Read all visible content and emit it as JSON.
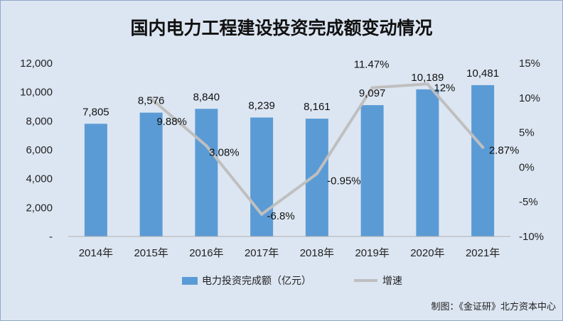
{
  "chart_data": {
    "type": "bar",
    "title": "国内电力工程建设投资完成额变动情况",
    "categories": [
      "2014年",
      "2015年",
      "2016年",
      "2017年",
      "2018年",
      "2019年",
      "2020年",
      "2021年"
    ],
    "series": [
      {
        "name": "电力投资完成额（亿元）",
        "type": "bar",
        "axis": "left",
        "color": "#5b9bd5",
        "values": [
          7805,
          8576,
          8840,
          8239,
          8161,
          9097,
          10189,
          10481
        ],
        "labels": [
          "7,805",
          "8,576",
          "8,840",
          "8,239",
          "8,161",
          "9,097",
          "10,189",
          "10,481"
        ]
      },
      {
        "name": "增速",
        "type": "line",
        "axis": "right",
        "color": "#bfbfbf",
        "values": [
          null,
          9.88,
          3.08,
          -6.8,
          -0.95,
          11.47,
          12,
          2.87
        ],
        "labels": [
          "",
          "9.88%",
          "3.08%",
          "-6.8%",
          "-0.95%",
          "11.47%",
          "12%",
          "2.87%"
        ]
      }
    ],
    "y_left": {
      "min": 0,
      "max": 12000,
      "ticks": [
        0,
        2000,
        4000,
        6000,
        8000,
        10000,
        12000
      ],
      "tick_labels": [
        "-",
        "2,000",
        "4,000",
        "6,000",
        "8,000",
        "10,000",
        "12,000"
      ]
    },
    "y_right": {
      "min": -10,
      "max": 15,
      "ticks": [
        -10,
        -5,
        0,
        5,
        10,
        15
      ],
      "tick_labels": [
        "-10%",
        "-5%",
        "0%",
        "5%",
        "10%",
        "15%"
      ]
    },
    "grid": false,
    "legend": "bottom",
    "source": "制图：《金证研》北方资本中心"
  }
}
